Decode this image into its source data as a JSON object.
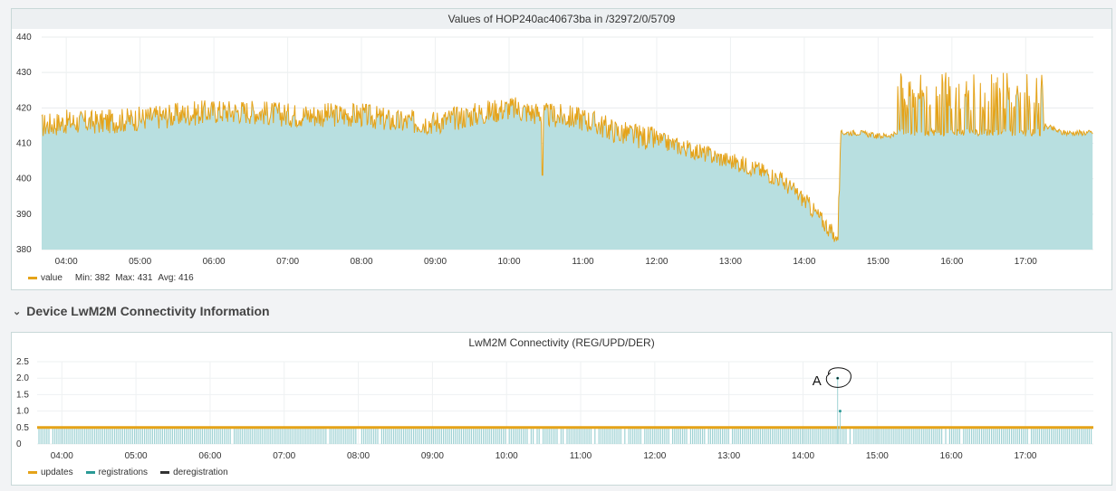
{
  "top_panel": {
    "title": "Values of HOP240ac40673ba in /32972/0/5709",
    "legend": {
      "series_name": "value",
      "stats": [
        {
          "label": "Min:",
          "value": "382"
        },
        {
          "label": "Max:",
          "value": "431"
        },
        {
          "label": "Avg:",
          "value": "416"
        }
      ]
    }
  },
  "section": {
    "chevron_icon": "chevron-down-icon",
    "title": "Device LwM2M Connectivity Information"
  },
  "bottom_panel": {
    "title": "LwM2M Connectivity (REG/UPD/DER)",
    "annotation_label": "A",
    "legend": [
      {
        "name": "updates",
        "color": "#e5a319"
      },
      {
        "name": "registrations",
        "color": "#2a9a96"
      },
      {
        "name": "deregistration",
        "color": "#333333"
      }
    ]
  },
  "chart_data": [
    {
      "type": "area",
      "title": "Values of HOP240ac40673ba in /32972/0/5709",
      "x_unit": "time of day",
      "xlabel": "",
      "ylabel": "",
      "xlim": [
        "03:40",
        "17:55"
      ],
      "ylim": [
        380,
        440
      ],
      "x_ticks": [
        "04:00",
        "05:00",
        "06:00",
        "07:00",
        "08:00",
        "09:00",
        "10:00",
        "11:00",
        "12:00",
        "13:00",
        "14:00",
        "15:00",
        "16:00",
        "17:00"
      ],
      "y_ticks": [
        380,
        390,
        400,
        410,
        420,
        430,
        440
      ],
      "grid": true,
      "legend_position": "bottom-left",
      "colors": {
        "line": "#e5a319",
        "fill": "#b8dfe0"
      },
      "series": [
        {
          "name": "value",
          "x": [
            "03:40",
            "04:00",
            "04:30",
            "05:00",
            "05:30",
            "06:00",
            "06:30",
            "07:00",
            "07:30",
            "08:00",
            "08:30",
            "09:00",
            "09:30",
            "10:00",
            "10:30",
            "11:00",
            "11:30",
            "12:00",
            "12:30",
            "13:00",
            "13:20",
            "13:40",
            "14:00",
            "14:10",
            "14:20",
            "14:27",
            "14:30",
            "14:45",
            "15:00",
            "15:30",
            "15:45",
            "16:00",
            "16:30",
            "17:00",
            "17:15",
            "17:30",
            "17:55"
          ],
          "y": [
            415,
            416,
            416,
            417,
            418,
            419,
            419,
            418,
            418,
            418,
            416,
            416,
            418,
            420,
            418,
            417,
            413,
            411,
            408,
            405,
            403,
            400,
            394,
            390,
            386,
            382,
            413,
            413,
            412,
            413,
            422,
            421,
            422,
            421,
            415,
            413,
            413
          ],
          "spike_low": {
            "x": "10:27",
            "y": 401
          },
          "min": 382,
          "max": 431,
          "avg": 416
        }
      ]
    },
    {
      "type": "bar",
      "title": "LwM2M Connectivity (REG/UPD/DER)",
      "xlabel": "",
      "ylabel": "",
      "xlim": [
        "03:40",
        "17:55"
      ],
      "ylim": [
        0,
        2.5
      ],
      "x_ticks": [
        "04:00",
        "05:00",
        "06:00",
        "07:00",
        "08:00",
        "09:00",
        "10:00",
        "11:00",
        "12:00",
        "13:00",
        "14:00",
        "15:00",
        "16:00",
        "17:00"
      ],
      "y_ticks": [
        "0",
        "0.5",
        "1.0",
        "1.5",
        "2.0",
        "2.5"
      ],
      "grid": true,
      "legend_position": "bottom-left",
      "series": [
        {
          "name": "updates",
          "value": 0.5,
          "color": "#e5a319"
        },
        {
          "name": "registrations",
          "points": [
            {
              "x": "14:30",
              "y": 1.0
            },
            {
              "x": "14:28",
              "y": 2.0
            }
          ],
          "color": "#2a9a96"
        },
        {
          "name": "deregistration",
          "points": [],
          "color": "#333333"
        }
      ],
      "annotation": {
        "text": "A",
        "x": "14:28",
        "y": 2.0
      }
    }
  ]
}
